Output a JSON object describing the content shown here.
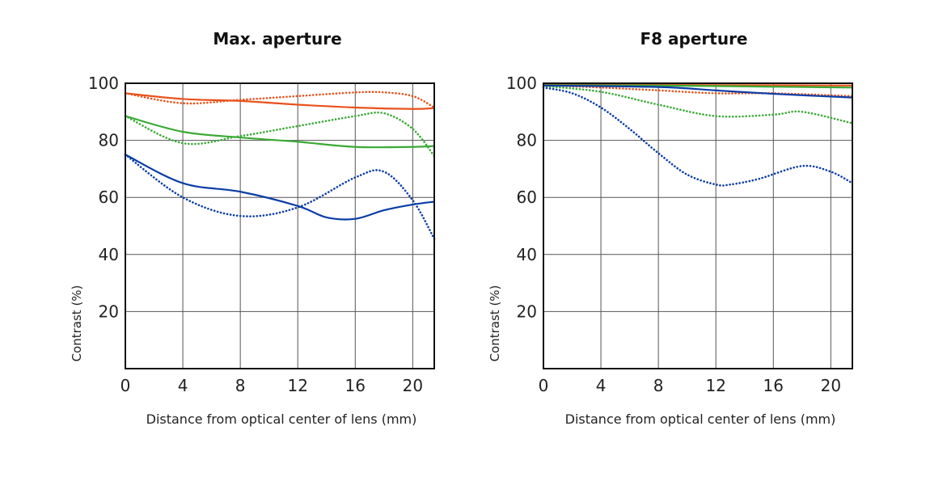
{
  "chart_data": [
    {
      "type": "line",
      "title": "Max. aperture",
      "xlabel": "Distance from optical center of lens (mm)",
      "ylabel": "Contrast (%)",
      "xlim": [
        0,
        21.5
      ],
      "ylim": [
        0,
        100
      ],
      "xticks": [
        "0",
        "4",
        "8",
        "12",
        "16",
        "20"
      ],
      "yticks": [
        "100",
        "80",
        "60",
        "40",
        "20"
      ],
      "grid": true,
      "series": [
        {
          "name": "orange-solid",
          "color": "#e8521c",
          "style": "solid",
          "points": [
            [
              0,
              96.5
            ],
            [
              4,
              94.5
            ],
            [
              8,
              93.8
            ],
            [
              12,
              92.5
            ],
            [
              16,
              91.5
            ],
            [
              20,
              91
            ],
            [
              21.5,
              91.3
            ]
          ]
        },
        {
          "name": "orange-dotted",
          "color": "#e8521c",
          "style": "dotted",
          "points": [
            [
              0,
              96.5
            ],
            [
              4,
              93
            ],
            [
              8,
              94.2
            ],
            [
              12,
              95.5
            ],
            [
              16,
              96.8
            ],
            [
              18,
              96.8
            ],
            [
              20,
              95.5
            ],
            [
              21.5,
              91.5
            ]
          ]
        },
        {
          "name": "green-solid",
          "color": "#3aaa35",
          "style": "solid",
          "points": [
            [
              0,
              88.5
            ],
            [
              4,
              83
            ],
            [
              8,
              81
            ],
            [
              12,
              79.5
            ],
            [
              16,
              77.7
            ],
            [
              20,
              77.7
            ],
            [
              21.5,
              78
            ]
          ]
        },
        {
          "name": "green-dotted",
          "color": "#3aaa35",
          "style": "dotted",
          "points": [
            [
              0,
              88.5
            ],
            [
              4,
              79
            ],
            [
              8,
              81.5
            ],
            [
              12,
              85
            ],
            [
              16,
              88.5
            ],
            [
              18,
              89.5
            ],
            [
              20,
              84
            ],
            [
              21.5,
              74.5
            ]
          ]
        },
        {
          "name": "blue-solid",
          "color": "#0a3da6",
          "style": "solid",
          "points": [
            [
              0,
              75
            ],
            [
              4,
              65
            ],
            [
              8,
              62
            ],
            [
              12,
              57
            ],
            [
              14,
              53
            ],
            [
              16,
              52.5
            ],
            [
              18,
              55.5
            ],
            [
              20,
              57.5
            ],
            [
              21.5,
              58.5
            ]
          ]
        },
        {
          "name": "blue-dotted",
          "color": "#0a3da6",
          "style": "dotted",
          "points": [
            [
              0,
              75
            ],
            [
              4,
              60
            ],
            [
              8,
              53.5
            ],
            [
              12,
              56.5
            ],
            [
              16,
              67
            ],
            [
              18,
              69
            ],
            [
              20,
              59
            ],
            [
              21.5,
              45.5
            ]
          ]
        }
      ]
    },
    {
      "type": "line",
      "title": "F8 aperture",
      "xlabel": "Distance from optical center of lens (mm)",
      "ylabel": "Contrast (%)",
      "xlim": [
        0,
        21.5
      ],
      "ylim": [
        0,
        100
      ],
      "xticks": [
        "0",
        "4",
        "8",
        "12",
        "16",
        "20"
      ],
      "yticks": [
        "100",
        "80",
        "60",
        "40",
        "20"
      ],
      "grid": true,
      "series": [
        {
          "name": "orange-solid",
          "color": "#e8521c",
          "style": "solid",
          "points": [
            [
              0,
              99.5
            ],
            [
              8,
              99.4
            ],
            [
              16,
              99.3
            ],
            [
              21.5,
              99.2
            ]
          ]
        },
        {
          "name": "orange-dotted",
          "color": "#e8521c",
          "style": "dotted",
          "points": [
            [
              0,
              99.3
            ],
            [
              4,
              98.5
            ],
            [
              8,
              97.5
            ],
            [
              12,
              96.5
            ],
            [
              16,
              96.5
            ],
            [
              21.5,
              95.5
            ]
          ]
        },
        {
          "name": "green-solid",
          "color": "#3aaa35",
          "style": "solid",
          "points": [
            [
              0,
              99.3
            ],
            [
              8,
              99.2
            ],
            [
              16,
              98.8
            ],
            [
              21.5,
              98.5
            ]
          ]
        },
        {
          "name": "green-dotted",
          "color": "#3aaa35",
          "style": "dotted",
          "points": [
            [
              0,
              99
            ],
            [
              4,
              97
            ],
            [
              8,
              92.5
            ],
            [
              12,
              88.5
            ],
            [
              16,
              89
            ],
            [
              18,
              90
            ],
            [
              21.5,
              86
            ]
          ]
        },
        {
          "name": "blue-solid",
          "color": "#0a3da6",
          "style": "solid",
          "points": [
            [
              0,
              99.2
            ],
            [
              8,
              98.7
            ],
            [
              12,
              97.5
            ],
            [
              16,
              96.3
            ],
            [
              21.5,
              95
            ]
          ]
        },
        {
          "name": "blue-dotted",
          "color": "#0a3da6",
          "style": "dotted",
          "points": [
            [
              0,
              98.5
            ],
            [
              2,
              96.5
            ],
            [
              4,
              91.5
            ],
            [
              6,
              84
            ],
            [
              8,
              75.5
            ],
            [
              10,
              68
            ],
            [
              12,
              64.5
            ],
            [
              13,
              64.5
            ],
            [
              15,
              66.5
            ],
            [
              18,
              71
            ],
            [
              20,
              69
            ],
            [
              21.5,
              65
            ]
          ]
        }
      ]
    }
  ]
}
